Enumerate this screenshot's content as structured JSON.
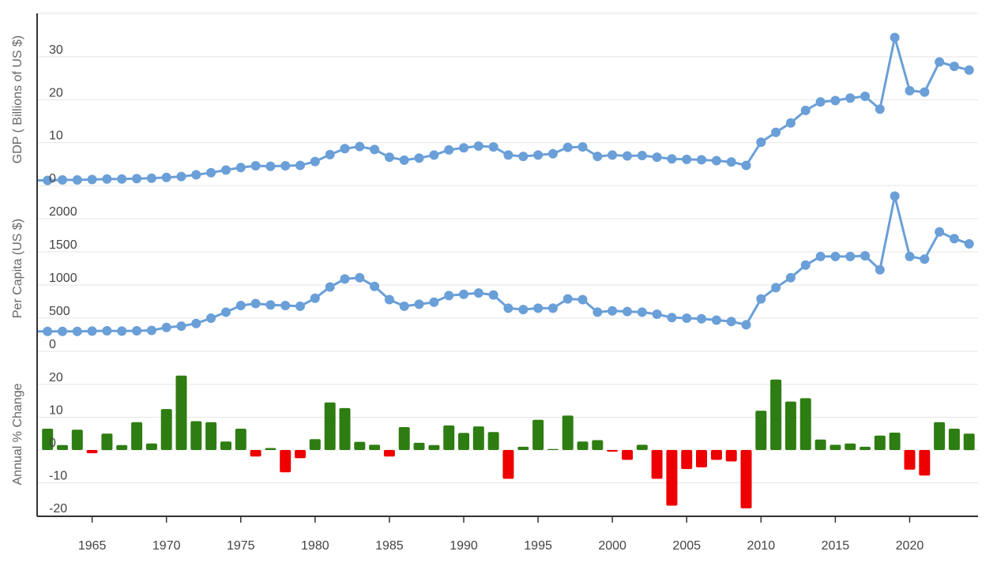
{
  "chart_data": [
    {
      "type": "line",
      "ylabel": "GDP ( Billions of US $)",
      "ylim": [
        0,
        40
      ],
      "yticks": [
        0,
        10,
        20,
        30
      ],
      "x": [
        1962,
        1963,
        1964,
        1965,
        1966,
        1967,
        1968,
        1969,
        1970,
        1971,
        1972,
        1973,
        1974,
        1975,
        1976,
        1977,
        1978,
        1979,
        1980,
        1981,
        1982,
        1983,
        1984,
        1985,
        1986,
        1987,
        1988,
        1989,
        1990,
        1991,
        1992,
        1993,
        1994,
        1995,
        1996,
        1997,
        1998,
        1999,
        2000,
        2001,
        2002,
        2003,
        2004,
        2005,
        2006,
        2007,
        2008,
        2009,
        2010,
        2011,
        2012,
        2013,
        2014,
        2015,
        2016,
        2017,
        2018,
        2019,
        2020,
        2021,
        2022,
        2023,
        2024
      ],
      "series": [
        {
          "values": [
            1.2,
            1.3,
            1.3,
            1.4,
            1.5,
            1.5,
            1.6,
            1.7,
            1.9,
            2.1,
            2.5,
            3.0,
            3.6,
            4.2,
            4.6,
            4.5,
            4.6,
            4.7,
            5.6,
            7.2,
            8.6,
            9.1,
            8.4,
            6.6,
            5.9,
            6.4,
            7.1,
            8.3,
            8.8,
            9.2,
            9.0,
            7.1,
            6.8,
            7.1,
            7.4,
            8.9,
            9.0,
            6.8,
            7.1,
            6.9,
            7.0,
            6.6,
            6.2,
            6.1,
            6.0,
            5.8,
            5.5,
            4.7,
            10.1,
            12.4,
            14.6,
            17.5,
            19.5,
            19.8,
            20.4,
            20.8,
            17.8,
            34.5,
            22.1,
            21.8,
            28.8,
            27.8,
            26.9
          ],
          "color": "#6a9fd8"
        }
      ]
    },
    {
      "type": "line",
      "ylabel": "Per Capita (US $)",
      "ylim": [
        0,
        2500
      ],
      "yticks": [
        0,
        500,
        1000,
        1500,
        2000
      ],
      "x": [
        1962,
        1963,
        1964,
        1965,
        1966,
        1967,
        1968,
        1969,
        1970,
        1971,
        1972,
        1973,
        1974,
        1975,
        1976,
        1977,
        1978,
        1979,
        1980,
        1981,
        1982,
        1983,
        1984,
        1985,
        1986,
        1987,
        1988,
        1989,
        1990,
        1991,
        1992,
        1993,
        1994,
        1995,
        1996,
        1997,
        1998,
        1999,
        2000,
        2001,
        2002,
        2003,
        2004,
        2005,
        2006,
        2007,
        2008,
        2009,
        2010,
        2011,
        2012,
        2013,
        2014,
        2015,
        2016,
        2017,
        2018,
        2019,
        2020,
        2021,
        2022,
        2023,
        2024
      ],
      "series": [
        {
          "values": [
            300,
            300,
            300,
            305,
            310,
            305,
            310,
            315,
            360,
            380,
            420,
            500,
            590,
            690,
            720,
            700,
            690,
            680,
            800,
            970,
            1090,
            1110,
            980,
            780,
            680,
            710,
            740,
            840,
            860,
            880,
            850,
            650,
            630,
            650,
            650,
            790,
            780,
            590,
            610,
            600,
            590,
            560,
            510,
            500,
            490,
            470,
            450,
            400,
            790,
            960,
            1110,
            1300,
            1430,
            1430,
            1430,
            1440,
            1230,
            2340,
            1430,
            1390,
            1800,
            1700,
            1620
          ],
          "color": "#6a9fd8"
        }
      ]
    },
    {
      "type": "bar",
      "ylabel": "Annual % Change",
      "ylim": [
        -20,
        25
      ],
      "yticks": [
        -20,
        -10,
        0,
        10,
        20
      ],
      "x": [
        1962,
        1963,
        1964,
        1965,
        1966,
        1967,
        1968,
        1969,
        1970,
        1971,
        1972,
        1973,
        1974,
        1975,
        1976,
        1977,
        1978,
        1979,
        1980,
        1981,
        1982,
        1983,
        1984,
        1985,
        1986,
        1987,
        1988,
        1989,
        1990,
        1991,
        1992,
        1993,
        1994,
        1995,
        1996,
        1997,
        1998,
        1999,
        2000,
        2001,
        2002,
        2003,
        2004,
        2005,
        2006,
        2007,
        2008,
        2009,
        2010,
        2011,
        2012,
        2013,
        2014,
        2015,
        2016,
        2017,
        2018,
        2019,
        2020,
        2021,
        2022,
        2023,
        2024
      ],
      "series": [
        {
          "values": [
            6.5,
            1.5,
            6.2,
            -1.0,
            5.0,
            1.5,
            8.5,
            2.0,
            12.5,
            22.7,
            8.8,
            8.5,
            2.6,
            6.5,
            -2.0,
            0.6,
            -6.8,
            -2.5,
            3.3,
            14.5,
            12.8,
            2.5,
            1.6,
            -2.0,
            7.0,
            2.2,
            1.5,
            7.5,
            5.2,
            7.2,
            5.5,
            -8.8,
            1.0,
            9.2,
            0.3,
            10.5,
            2.6,
            3.0,
            -0.5,
            -3.0,
            1.6,
            -8.8,
            -17.0,
            -5.8,
            -5.3,
            -3.0,
            -3.5,
            -17.8,
            12.0,
            21.5,
            14.8,
            15.8,
            3.2,
            1.6,
            2.0,
            1.0,
            4.4,
            5.3,
            -6.0,
            -7.8,
            8.5,
            6.5,
            5.0
          ]
        }
      ],
      "positive_color": "#2e7d12",
      "negative_color": "#ef0000"
    }
  ],
  "x_axis": {
    "ticks": [
      1965,
      1970,
      1975,
      1980,
      1985,
      1990,
      1995,
      2000,
      2005,
      2010,
      2015,
      2020
    ],
    "range": [
      1961.3,
      2024.6
    ]
  }
}
